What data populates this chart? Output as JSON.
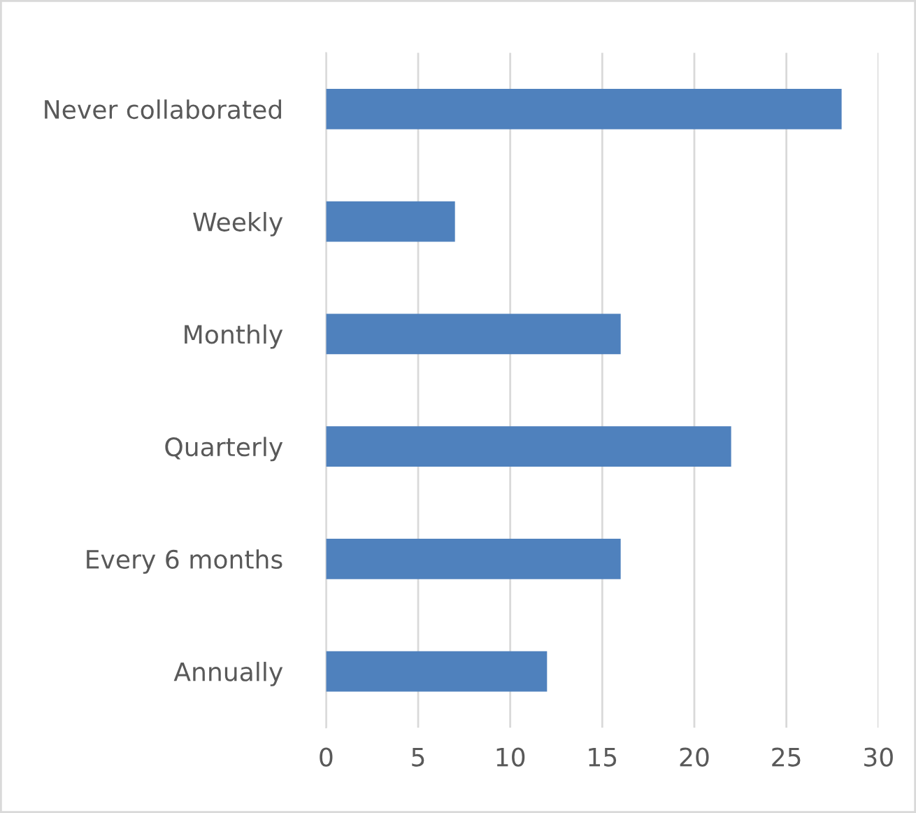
{
  "chart_data": {
    "type": "bar",
    "orientation": "horizontal",
    "categories": [
      "Never collaborated",
      "Weekly",
      "Monthly",
      "Quarterly",
      "Every 6 months",
      "Annually"
    ],
    "values": [
      28,
      7,
      16,
      22,
      16,
      12
    ],
    "color": "#4f81bd",
    "xlim": [
      0,
      30
    ],
    "xticks": [
      0,
      5,
      10,
      15,
      20,
      25,
      30
    ],
    "grid": "x",
    "legend": false
  }
}
